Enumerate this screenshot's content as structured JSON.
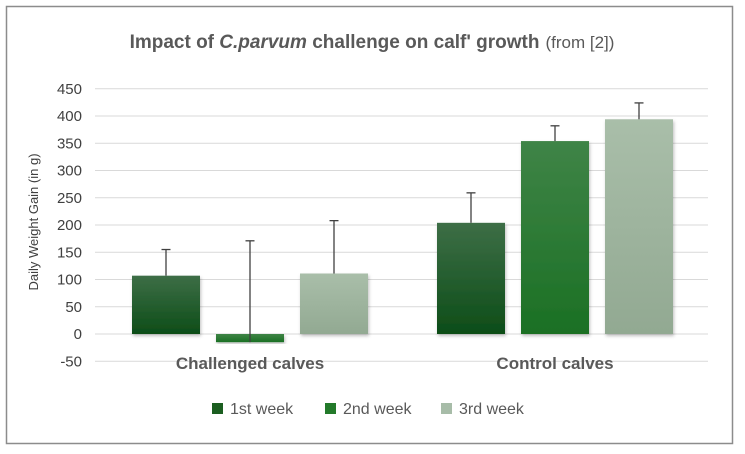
{
  "chart_data": {
    "type": "bar",
    "title_prefix": "Impact of ",
    "title_italic": "C.parvum",
    "title_suffix": " challenge on calf' growth",
    "subtitle": "(from [2])",
    "ylabel": "Daily Weight Gain (in g)",
    "xlabel": "",
    "ylim": [
      -50,
      450
    ],
    "yticks": [
      -50,
      0,
      50,
      100,
      150,
      200,
      250,
      300,
      350,
      400,
      450
    ],
    "categories": [
      "Challenged calves",
      "Control calves"
    ],
    "series": [
      {
        "name": "1st week",
        "values": [
          107,
          204
        ],
        "errors": [
          48,
          55
        ]
      },
      {
        "name": "2nd week",
        "values": [
          -15,
          354
        ],
        "errors": [
          186,
          28
        ]
      },
      {
        "name": "3rd week",
        "values": [
          111,
          394
        ],
        "errors": [
          97,
          30
        ]
      }
    ],
    "grid": true,
    "legend_position": "bottom",
    "colors": [
      "#1b5e20",
      "#237a2a",
      "#a7bca8"
    ]
  }
}
